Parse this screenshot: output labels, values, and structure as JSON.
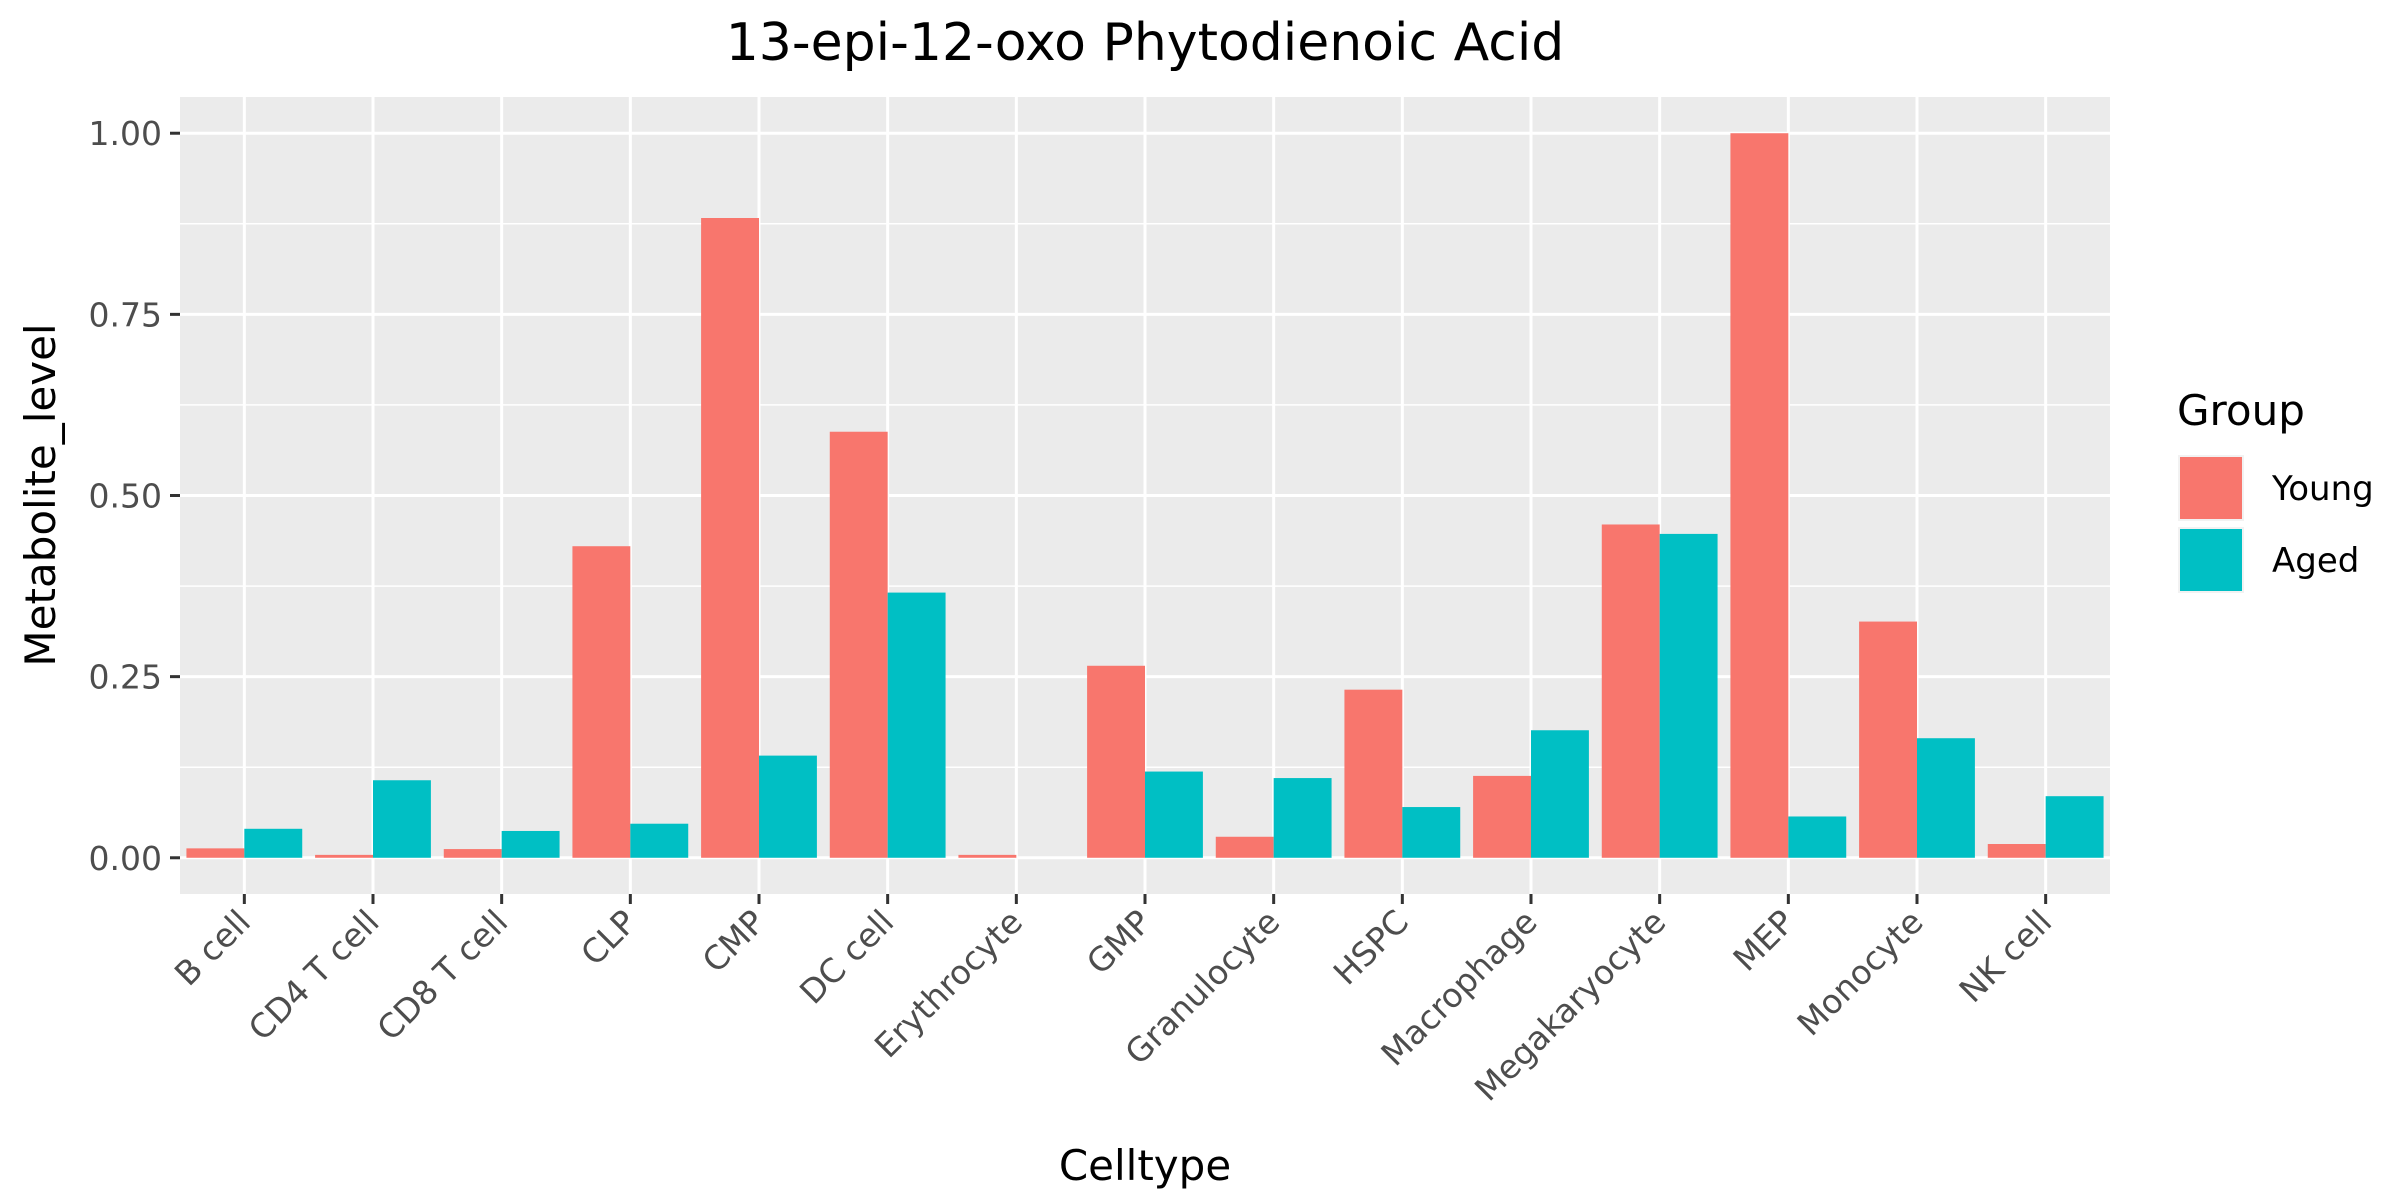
{
  "chart_data": {
    "type": "bar",
    "title": "13-epi-12-oxo Phytodienoic Acid",
    "xlabel": "Celltype",
    "ylabel": "Metabolite_level",
    "ylim": [
      -0.05,
      1.05
    ],
    "yticks": [
      0.0,
      0.25,
      0.5,
      0.75,
      1.0
    ],
    "ytick_labels": [
      "0.00",
      "0.25",
      "0.50",
      "0.75",
      "1.00"
    ],
    "grid": true,
    "legend": {
      "title": "Group",
      "placement": "right"
    },
    "categories": [
      "B cell",
      "CD4 T cell",
      "CD8 T cell",
      "CLP",
      "CMP",
      "DC cell",
      "Erythrocyte",
      "GMP",
      "Granulocyte",
      "HSPC",
      "Macrophage",
      "Megakaryocyte",
      "MEP",
      "Monocyte",
      "NK cell"
    ],
    "series": [
      {
        "name": "Young",
        "color": "#F8766D",
        "values": [
          0.013,
          0.004,
          0.012,
          0.43,
          0.883,
          0.588,
          0.004,
          0.265,
          0.029,
          0.232,
          0.113,
          0.46,
          1.0,
          0.326,
          0.019
        ]
      },
      {
        "name": "Aged",
        "color": "#00BFC4",
        "values": [
          0.04,
          0.107,
          0.037,
          0.047,
          0.141,
          0.366,
          0.0,
          0.119,
          0.11,
          0.07,
          0.176,
          0.447,
          0.057,
          0.165,
          0.085
        ]
      }
    ]
  }
}
